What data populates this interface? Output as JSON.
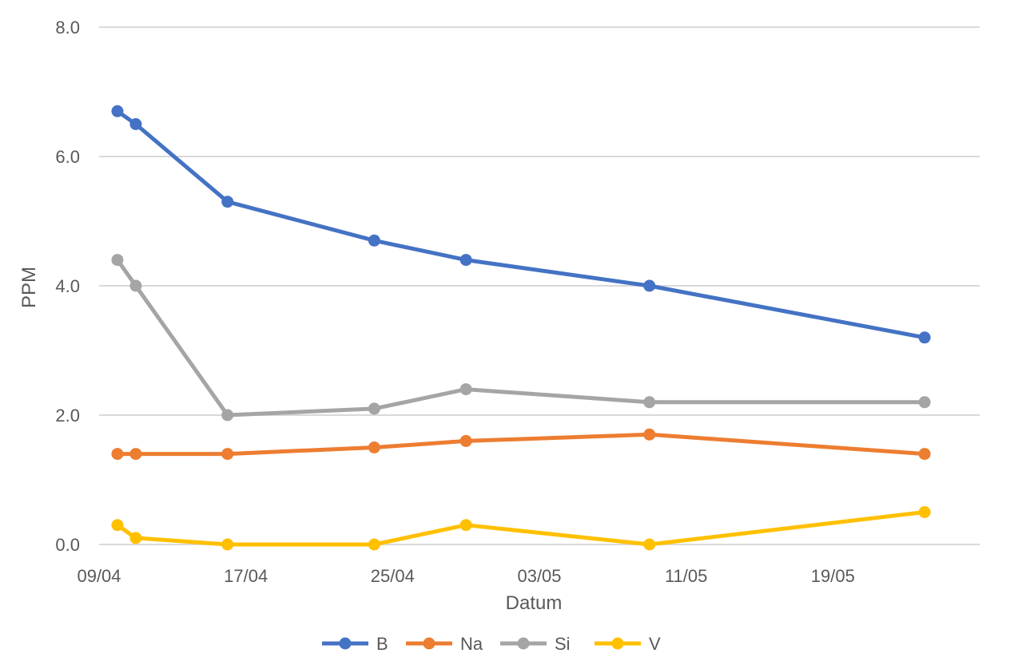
{
  "chart_data": {
    "type": "line",
    "title": "",
    "xlabel": "Datum",
    "ylabel": "PPM",
    "x_is_date": true,
    "x_year": 2023,
    "x": [
      "2023-04-10",
      "2023-04-11",
      "2023-04-16",
      "2023-04-24",
      "2023-04-29",
      "2023-05-09",
      "2023-05-24"
    ],
    "x_ticks": [
      {
        "date": "2023-04-09",
        "label": "09/04"
      },
      {
        "date": "2023-04-17",
        "label": "17/04"
      },
      {
        "date": "2023-04-25",
        "label": "25/04"
      },
      {
        "date": "2023-05-03",
        "label": "03/05"
      },
      {
        "date": "2023-05-11",
        "label": "11/05"
      },
      {
        "date": "2023-05-19",
        "label": "19/05"
      }
    ],
    "xlim": [
      "2023-04-09",
      "2023-05-27"
    ],
    "ylim": [
      0,
      8
    ],
    "y_ticks": [
      "0.0",
      "2.0",
      "4.0",
      "6.0",
      "8.0"
    ],
    "grid": true,
    "legend_position": "bottom",
    "series": [
      {
        "name": "B",
        "color": "#4472C4",
        "values": [
          6.7,
          6.5,
          5.3,
          4.7,
          4.4,
          4.0,
          3.2
        ]
      },
      {
        "name": "Na",
        "color": "#ED7D31",
        "values": [
          1.4,
          1.4,
          1.4,
          1.5,
          1.6,
          1.7,
          1.4
        ]
      },
      {
        "name": "Si",
        "color": "#A5A5A5",
        "values": [
          4.4,
          4.0,
          2.0,
          2.1,
          2.4,
          2.2,
          2.2
        ]
      },
      {
        "name": "V",
        "color": "#FFC000",
        "values": [
          0.3,
          0.1,
          0.0,
          0.0,
          0.3,
          0.0,
          0.5
        ]
      }
    ]
  }
}
